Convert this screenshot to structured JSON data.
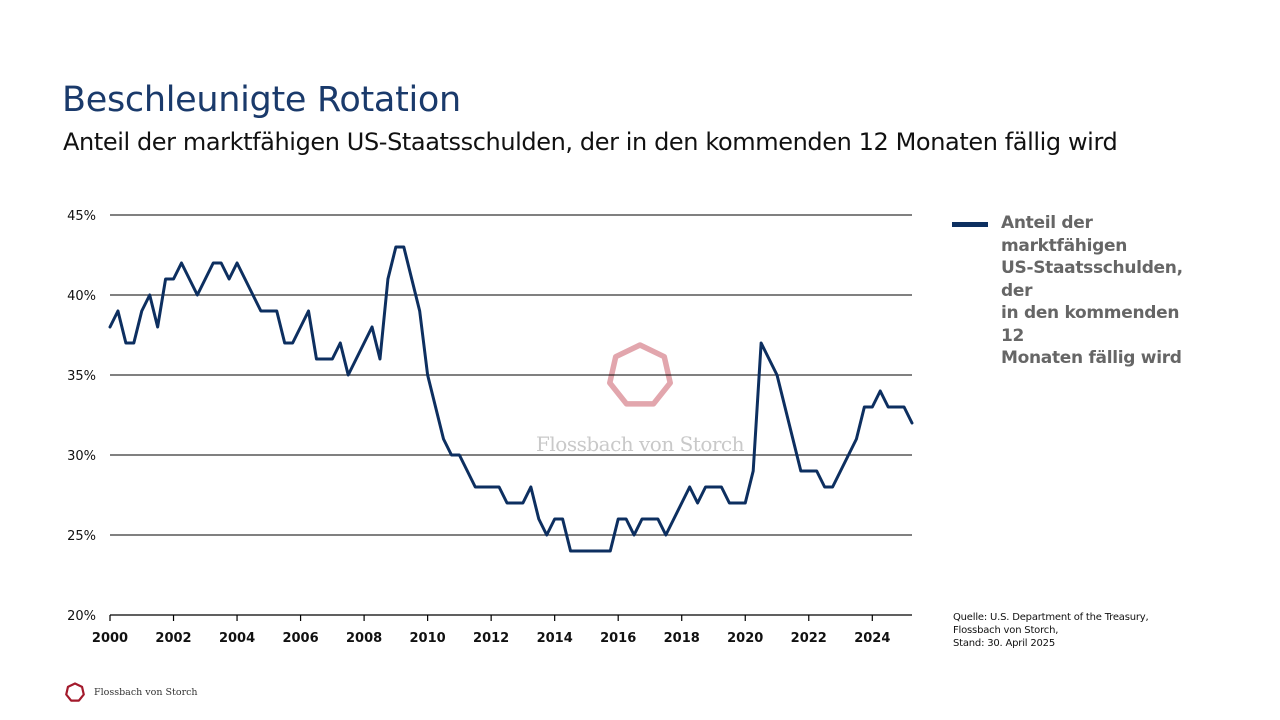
{
  "header": {
    "title": "Beschleunigte Rotation",
    "subtitle": "Anteil der marktfähigen US-Staatsschulden, der in den kommenden 12 Monaten fällig wird"
  },
  "colors": {
    "line": "#0d2f60",
    "title": "#1a3a6b",
    "legend_text": "#666666",
    "logo": "#a31a2c",
    "watermark_logo": "#e2a6ad"
  },
  "legend": {
    "label_lines": [
      "Anteil der",
      "marktfähigen",
      "US-Staatsschulden, der",
      "in den kommenden 12",
      "Monaten fällig wird"
    ]
  },
  "source": {
    "lines": [
      "Quelle: U.S. Department of the Treasury,",
      "Flossbach von Storch,",
      "Stand: 30. April 2025"
    ]
  },
  "watermark": {
    "text": "Flossbach von Storch",
    "icon": "heptagon-logo-icon"
  },
  "footer": {
    "brand": "Flossbach von Storch",
    "icon": "heptagon-logo-icon"
  },
  "chart_data": {
    "type": "line",
    "title": "Anteil der marktfähigen US-Staatsschulden, der in den kommenden 12 Monaten fällig wird",
    "xlabel": "",
    "ylabel": "",
    "xlim": [
      2000,
      2025.25
    ],
    "ylim": [
      20,
      45
    ],
    "x_ticks": [
      2000,
      2002,
      2004,
      2006,
      2008,
      2010,
      2012,
      2014,
      2016,
      2018,
      2020,
      2022,
      2024
    ],
    "x_tick_labels": [
      "2000",
      "2002",
      "2004",
      "2006",
      "2008",
      "2010",
      "2012",
      "2014",
      "2016",
      "2018",
      "2020",
      "2022",
      "2024"
    ],
    "y_ticks": [
      20,
      25,
      30,
      35,
      40,
      45
    ],
    "y_tick_labels": [
      "20%",
      "25%",
      "30%",
      "35%",
      "40%",
      "45%"
    ],
    "grid": "horizontal",
    "legend_position": "right",
    "series": [
      {
        "name": "Anteil der marktfähigen US-Staatsschulden, der in den kommenden 12 Monaten fällig wird",
        "points": [
          [
            2000.0,
            38
          ],
          [
            2000.25,
            39
          ],
          [
            2000.5,
            37
          ],
          [
            2000.75,
            37
          ],
          [
            2001.0,
            39
          ],
          [
            2001.25,
            40
          ],
          [
            2001.5,
            38
          ],
          [
            2001.75,
            41
          ],
          [
            2002.0,
            41
          ],
          [
            2002.25,
            42
          ],
          [
            2002.5,
            41
          ],
          [
            2002.75,
            40
          ],
          [
            2003.0,
            41
          ],
          [
            2003.25,
            42
          ],
          [
            2003.5,
            42
          ],
          [
            2003.75,
            41
          ],
          [
            2004.0,
            42
          ],
          [
            2004.25,
            41
          ],
          [
            2004.5,
            40
          ],
          [
            2004.75,
            39
          ],
          [
            2005.0,
            39
          ],
          [
            2005.25,
            39
          ],
          [
            2005.5,
            37
          ],
          [
            2005.75,
            37
          ],
          [
            2006.0,
            38
          ],
          [
            2006.25,
            39
          ],
          [
            2006.5,
            36
          ],
          [
            2006.75,
            36
          ],
          [
            2007.0,
            36
          ],
          [
            2007.25,
            37
          ],
          [
            2007.5,
            35
          ],
          [
            2007.75,
            36
          ],
          [
            2008.0,
            37
          ],
          [
            2008.25,
            38
          ],
          [
            2008.5,
            36
          ],
          [
            2008.75,
            41
          ],
          [
            2009.0,
            43
          ],
          [
            2009.25,
            43
          ],
          [
            2009.5,
            41
          ],
          [
            2009.75,
            39
          ],
          [
            2010.0,
            35
          ],
          [
            2010.25,
            33
          ],
          [
            2010.5,
            31
          ],
          [
            2010.75,
            30
          ],
          [
            2011.0,
            30
          ],
          [
            2011.25,
            29
          ],
          [
            2011.5,
            28
          ],
          [
            2011.75,
            28
          ],
          [
            2012.0,
            28
          ],
          [
            2012.25,
            28
          ],
          [
            2012.5,
            27
          ],
          [
            2012.75,
            27
          ],
          [
            2013.0,
            27
          ],
          [
            2013.25,
            28
          ],
          [
            2013.5,
            26
          ],
          [
            2013.75,
            25
          ],
          [
            2014.0,
            26
          ],
          [
            2014.25,
            26
          ],
          [
            2014.5,
            24
          ],
          [
            2014.75,
            24
          ],
          [
            2015.0,
            24
          ],
          [
            2015.25,
            24
          ],
          [
            2015.5,
            24
          ],
          [
            2015.75,
            24
          ],
          [
            2016.0,
            26
          ],
          [
            2016.25,
            26
          ],
          [
            2016.5,
            25
          ],
          [
            2016.75,
            26
          ],
          [
            2017.0,
            26
          ],
          [
            2017.25,
            26
          ],
          [
            2017.5,
            25
          ],
          [
            2017.75,
            26
          ],
          [
            2018.0,
            27
          ],
          [
            2018.25,
            28
          ],
          [
            2018.5,
            27
          ],
          [
            2018.75,
            28
          ],
          [
            2019.0,
            28
          ],
          [
            2019.25,
            28
          ],
          [
            2019.5,
            27
          ],
          [
            2019.75,
            27
          ],
          [
            2020.0,
            27
          ],
          [
            2020.25,
            29
          ],
          [
            2020.5,
            37
          ],
          [
            2020.75,
            36
          ],
          [
            2021.0,
            35
          ],
          [
            2021.25,
            33
          ],
          [
            2021.5,
            31
          ],
          [
            2021.75,
            29
          ],
          [
            2022.0,
            29
          ],
          [
            2022.25,
            29
          ],
          [
            2022.5,
            28
          ],
          [
            2022.75,
            28
          ],
          [
            2023.0,
            29
          ],
          [
            2023.25,
            30
          ],
          [
            2023.5,
            31
          ],
          [
            2023.75,
            33
          ],
          [
            2024.0,
            33
          ],
          [
            2024.25,
            34
          ],
          [
            2024.5,
            33
          ],
          [
            2024.75,
            33
          ],
          [
            2025.0,
            33
          ],
          [
            2025.25,
            32
          ]
        ]
      }
    ]
  }
}
